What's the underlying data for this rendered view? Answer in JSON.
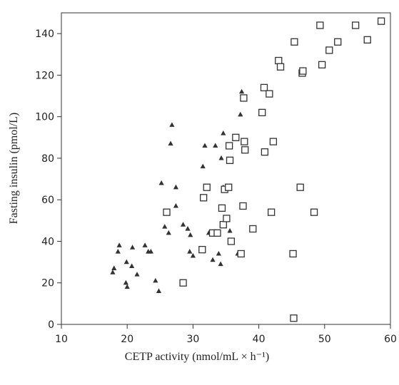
{
  "chart_data": {
    "type": "scatter",
    "xlabel": "CETP activity (nmol/mL × h⁻¹)",
    "ylabel": "Fasting insulin (pmol/L)",
    "xlim": [
      10,
      60
    ],
    "ylim": [
      0,
      150
    ],
    "xticks": [
      "10",
      "20",
      "30",
      "40",
      "50",
      "60"
    ],
    "yticks": [
      "0",
      "20",
      "40",
      "60",
      "80",
      "100",
      "120",
      "140"
    ],
    "grid": false,
    "series": [
      {
        "marker": "triangle",
        "color": "#333333",
        "points": [
          [
            18.0,
            27
          ],
          [
            17.8,
            25
          ],
          [
            18.8,
            38
          ],
          [
            18.6,
            35
          ],
          [
            19.8,
            20
          ],
          [
            20.0,
            18
          ],
          [
            19.9,
            30
          ],
          [
            20.8,
            37
          ],
          [
            20.7,
            28
          ],
          [
            21.5,
            24
          ],
          [
            22.7,
            38
          ],
          [
            23.2,
            35
          ],
          [
            23.6,
            35
          ],
          [
            24.3,
            21
          ],
          [
            24.8,
            16
          ],
          [
            25.2,
            68
          ],
          [
            25.7,
            47
          ],
          [
            26.3,
            44
          ],
          [
            26.8,
            96
          ],
          [
            26.6,
            87
          ],
          [
            27.4,
            66
          ],
          [
            27.4,
            57
          ],
          [
            28.5,
            48
          ],
          [
            29.2,
            46
          ],
          [
            29.6,
            43
          ],
          [
            29.5,
            35
          ],
          [
            30.0,
            33
          ],
          [
            31.5,
            76
          ],
          [
            31.8,
            86
          ],
          [
            32.4,
            44
          ],
          [
            33.0,
            31
          ],
          [
            33.4,
            86
          ],
          [
            33.9,
            34
          ],
          [
            34.2,
            29
          ],
          [
            34.3,
            80
          ],
          [
            34.6,
            92
          ],
          [
            34.6,
            66
          ],
          [
            35.3,
            66
          ],
          [
            35.6,
            45
          ],
          [
            36.8,
            34
          ],
          [
            37.2,
            101
          ],
          [
            37.4,
            112
          ]
        ]
      },
      {
        "marker": "square",
        "color": "#333333",
        "points": [
          [
            26.0,
            54
          ],
          [
            28.5,
            20
          ],
          [
            31.4,
            36
          ],
          [
            31.6,
            61
          ],
          [
            32.1,
            66
          ],
          [
            33.0,
            44
          ],
          [
            33.7,
            44
          ],
          [
            34.4,
            56
          ],
          [
            34.8,
            65
          ],
          [
            34.6,
            48
          ],
          [
            35.1,
            51
          ],
          [
            35.4,
            66
          ],
          [
            35.5,
            86
          ],
          [
            35.6,
            79
          ],
          [
            35.8,
            40
          ],
          [
            36.5,
            90
          ],
          [
            37.3,
            34
          ],
          [
            37.6,
            57
          ],
          [
            37.7,
            109
          ],
          [
            37.8,
            88
          ],
          [
            37.9,
            84
          ],
          [
            39.1,
            46
          ],
          [
            40.5,
            102
          ],
          [
            40.8,
            114
          ],
          [
            40.9,
            83
          ],
          [
            41.6,
            111
          ],
          [
            41.9,
            54
          ],
          [
            42.2,
            88
          ],
          [
            43.0,
            127
          ],
          [
            43.3,
            124
          ],
          [
            45.4,
            136
          ],
          [
            45.2,
            34
          ],
          [
            45.3,
            3
          ],
          [
            46.3,
            66
          ],
          [
            46.6,
            121
          ],
          [
            46.7,
            122
          ],
          [
            48.4,
            54
          ],
          [
            49.3,
            144
          ],
          [
            49.6,
            125
          ],
          [
            50.7,
            132
          ],
          [
            52.0,
            136
          ],
          [
            54.7,
            144
          ],
          [
            56.5,
            137
          ],
          [
            58.6,
            146
          ]
        ]
      }
    ]
  }
}
